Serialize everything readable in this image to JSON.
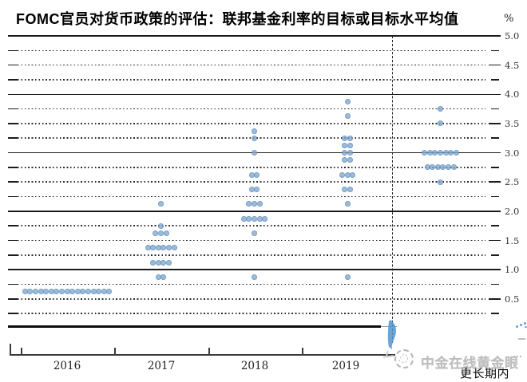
{
  "title": "FOMC官员对货币政策的评估：联邦基金利率的目标或目标水平均值",
  "unit_label": "%",
  "watermark_text": "中金在线黄金眼",
  "chart_data": {
    "type": "scatter",
    "subtype": "fomc-dot-plot",
    "title": "FOMC官员对货币政策的评估：联邦基金利率的目标或目标水平均值",
    "ylabel": "%",
    "ylim": [
      0,
      5.0
    ],
    "grid_step": 0.25,
    "grid_on": true,
    "y_axis_tick_labels": [
      "5.0",
      "4.5",
      "4.0",
      "3.5",
      "3.0",
      "2.5",
      "2.0",
      "1.5",
      "1.0",
      "0.5"
    ],
    "categories": [
      "2016",
      "2017",
      "2018",
      "2019",
      "更长期内"
    ],
    "longer_run_label": "更长期内",
    "dot_color": "#85abd0",
    "dot_edge_color": "#5d8cb8",
    "series": [
      {
        "name": "2016",
        "dots": [
          {
            "value": 0.625,
            "count": 17
          }
        ]
      },
      {
        "name": "2017",
        "dots": [
          {
            "value": 2.125,
            "count": 1
          },
          {
            "value": 1.75,
            "count": 1
          },
          {
            "value": 1.625,
            "count": 3
          },
          {
            "value": 1.375,
            "count": 6
          },
          {
            "value": 1.125,
            "count": 4
          },
          {
            "value": 0.875,
            "count": 2
          }
        ]
      },
      {
        "name": "2018",
        "dots": [
          {
            "value": 3.375,
            "count": 1
          },
          {
            "value": 3.25,
            "count": 1
          },
          {
            "value": 3.0,
            "count": 1
          },
          {
            "value": 2.625,
            "count": 2
          },
          {
            "value": 2.375,
            "count": 2
          },
          {
            "value": 2.125,
            "count": 3
          },
          {
            "value": 1.875,
            "count": 5
          },
          {
            "value": 1.625,
            "count": 1
          },
          {
            "value": 0.875,
            "count": 1
          }
        ]
      },
      {
        "name": "2019",
        "dots": [
          {
            "value": 3.875,
            "count": 1
          },
          {
            "value": 3.625,
            "count": 1
          },
          {
            "value": 3.25,
            "count": 2
          },
          {
            "value": 3.125,
            "count": 2
          },
          {
            "value": 3.0,
            "count": 2
          },
          {
            "value": 2.875,
            "count": 2
          },
          {
            "value": 2.625,
            "count": 3
          },
          {
            "value": 2.375,
            "count": 2
          },
          {
            "value": 2.125,
            "count": 1
          },
          {
            "value": 0.875,
            "count": 1
          }
        ]
      },
      {
        "name": "更长期内",
        "dots": [
          {
            "value": 3.75,
            "count": 1
          },
          {
            "value": 3.5,
            "count": 1
          },
          {
            "value": 3.0,
            "count": 7
          },
          {
            "value": 2.75,
            "count": 6
          },
          {
            "value": 2.5,
            "count": 1
          }
        ]
      }
    ]
  }
}
